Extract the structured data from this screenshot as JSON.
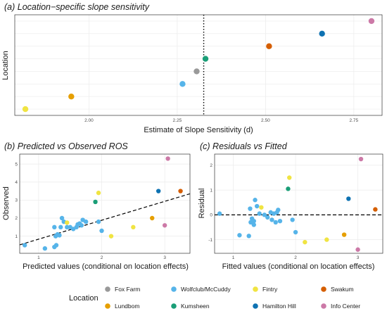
{
  "colors": {
    "Fox Farm": "#999999",
    "Lundbom": "#E69F00",
    "Wolfclub/McCuddy": "#56B4E9",
    "Kumsheen": "#1A9E77",
    "Fintry": "#F0E442",
    "Hamilton Hill": "#0E72B2",
    "Swakum": "#D55E00",
    "Info Center": "#CC79A7"
  },
  "legend": {
    "title": "Location",
    "items": [
      "Fox Farm",
      "Wolfclub/McCuddy",
      "Fintry",
      "Swakum",
      "Lundbom",
      "Kumsheen",
      "Hamilton Hill",
      "Info Center"
    ]
  },
  "chart_data": [
    {
      "type": "scatter",
      "title": "(a) Location−specific slope sensitivity",
      "xlabel": "Estimate of Slope Sensitivity (d)",
      "ylabel": "Location",
      "xlim": [
        1.79,
        2.83
      ],
      "ylim": [
        0.5,
        8.5
      ],
      "xticks": [
        2.0,
        2.25,
        2.5,
        2.75
      ],
      "xtick_labels": [
        "2.00",
        "2.25",
        "2.50",
        "2.75"
      ],
      "vline": {
        "x": 2.325,
        "style": "dotted"
      },
      "grid": true,
      "points": [
        {
          "location": "Fintry",
          "x": 1.82,
          "y": 1
        },
        {
          "location": "Lundbom",
          "x": 1.95,
          "y": 2
        },
        {
          "location": "Wolfclub/McCuddy",
          "x": 2.265,
          "y": 3
        },
        {
          "location": "Fox Farm",
          "x": 2.305,
          "y": 4
        },
        {
          "location": "Kumsheen",
          "x": 2.33,
          "y": 5
        },
        {
          "location": "Swakum",
          "x": 2.51,
          "y": 6
        },
        {
          "location": "Hamilton Hill",
          "x": 2.66,
          "y": 7
        },
        {
          "location": "Info Center",
          "x": 2.8,
          "y": 8
        }
      ]
    },
    {
      "type": "scatter",
      "title": "(b) Predicted vs Observed ROS",
      "xlabel": "Predicted values (conditional on location effects)",
      "ylabel": "Observed",
      "xlim": [
        0.7,
        3.4
      ],
      "ylim": [
        0.05,
        5.55
      ],
      "xticks": [
        1,
        2,
        3
      ],
      "yticks": [
        1,
        2,
        3,
        4,
        5
      ],
      "reference_line": {
        "from": [
          0.7,
          0.52
        ],
        "to": [
          3.4,
          3.35
        ],
        "style": "dashed"
      },
      "grid": true,
      "points": [
        {
          "location": "Wolfclub/McCuddy",
          "x": 0.78,
          "y": 0.5
        },
        {
          "location": "Wolfclub/McCuddy",
          "x": 1.1,
          "y": 0.32
        },
        {
          "location": "Wolfclub/McCuddy",
          "x": 1.25,
          "y": 0.4
        },
        {
          "location": "Wolfclub/McCuddy",
          "x": 1.28,
          "y": 0.5
        },
        {
          "location": "Wolfclub/McCuddy",
          "x": 1.27,
          "y": 1.0
        },
        {
          "location": "Wolfclub/McCuddy",
          "x": 1.3,
          "y": 1.1
        },
        {
          "location": "Wolfclub/McCuddy",
          "x": 1.33,
          "y": 1.05
        },
        {
          "location": "Wolfclub/McCuddy",
          "x": 1.25,
          "y": 1.5
        },
        {
          "location": "Wolfclub/McCuddy",
          "x": 1.35,
          "y": 1.5
        },
        {
          "location": "Wolfclub/McCuddy",
          "x": 1.37,
          "y": 2.0
        },
        {
          "location": "Wolfclub/McCuddy",
          "x": 1.4,
          "y": 1.8
        },
        {
          "location": "Wolfclub/McCuddy",
          "x": 1.45,
          "y": 1.5
        },
        {
          "location": "Wolfclub/McCuddy",
          "x": 1.5,
          "y": 1.5
        },
        {
          "location": "Wolfclub/McCuddy",
          "x": 1.55,
          "y": 1.4
        },
        {
          "location": "Wolfclub/McCuddy",
          "x": 1.6,
          "y": 1.5
        },
        {
          "location": "Wolfclub/McCuddy",
          "x": 1.62,
          "y": 1.65
        },
        {
          "location": "Wolfclub/McCuddy",
          "x": 1.65,
          "y": 1.7
        },
        {
          "location": "Wolfclub/McCuddy",
          "x": 1.68,
          "y": 1.6
        },
        {
          "location": "Wolfclub/McCuddy",
          "x": 1.7,
          "y": 1.9
        },
        {
          "location": "Wolfclub/McCuddy",
          "x": 1.75,
          "y": 1.8
        },
        {
          "location": "Wolfclub/McCuddy",
          "x": 1.95,
          "y": 1.8
        },
        {
          "location": "Wolfclub/McCuddy",
          "x": 2.0,
          "y": 1.3
        },
        {
          "location": "Fintry",
          "x": 1.45,
          "y": 1.75
        },
        {
          "location": "Fintry",
          "x": 1.95,
          "y": 3.4
        },
        {
          "location": "Fintry",
          "x": 2.15,
          "y": 1.0
        },
        {
          "location": "Fintry",
          "x": 2.5,
          "y": 1.5
        },
        {
          "location": "Kumsheen",
          "x": 1.9,
          "y": 2.9
        },
        {
          "location": "Lundbom",
          "x": 2.8,
          "y": 2.0
        },
        {
          "location": "Hamilton Hill",
          "x": 2.9,
          "y": 3.5
        },
        {
          "location": "Swakum",
          "x": 3.25,
          "y": 3.5
        },
        {
          "location": "Info Center",
          "x": 3.05,
          "y": 5.3
        },
        {
          "location": "Info Center",
          "x": 3.0,
          "y": 1.6
        }
      ]
    },
    {
      "type": "scatter",
      "title": "(c) Residuals vs Fitted",
      "xlabel": "Fitted values (conditional on location effects)",
      "ylabel": "Residual",
      "xlim": [
        0.7,
        3.4
      ],
      "ylim": [
        -1.55,
        2.45
      ],
      "xticks": [
        1,
        2,
        3
      ],
      "yticks": [
        -1,
        0,
        1,
        2
      ],
      "reference_line": {
        "y": 0,
        "style": "dashed"
      },
      "grid": true,
      "points": [
        {
          "location": "Wolfclub/McCuddy",
          "x": 0.78,
          "y": 0.05
        },
        {
          "location": "Wolfclub/McCuddy",
          "x": 1.1,
          "y": -0.82
        },
        {
          "location": "Wolfclub/McCuddy",
          "x": 1.25,
          "y": -0.85
        },
        {
          "location": "Wolfclub/McCuddy",
          "x": 1.28,
          "y": -0.3
        },
        {
          "location": "Wolfclub/McCuddy",
          "x": 1.27,
          "y": 0.25
        },
        {
          "location": "Wolfclub/McCuddy",
          "x": 1.3,
          "y": -0.15
        },
        {
          "location": "Wolfclub/McCuddy",
          "x": 1.33,
          "y": -0.25
        },
        {
          "location": "Wolfclub/McCuddy",
          "x": 1.33,
          "y": -0.4
        },
        {
          "location": "Wolfclub/McCuddy",
          "x": 1.35,
          "y": 0.6
        },
        {
          "location": "Wolfclub/McCuddy",
          "x": 1.38,
          "y": 0.35
        },
        {
          "location": "Wolfclub/McCuddy",
          "x": 1.42,
          "y": 0.05
        },
        {
          "location": "Wolfclub/McCuddy",
          "x": 1.5,
          "y": 0.0
        },
        {
          "location": "Wolfclub/McCuddy",
          "x": 1.55,
          "y": -0.1
        },
        {
          "location": "Wolfclub/McCuddy",
          "x": 1.6,
          "y": 0.1
        },
        {
          "location": "Wolfclub/McCuddy",
          "x": 1.62,
          "y": -0.2
        },
        {
          "location": "Wolfclub/McCuddy",
          "x": 1.65,
          "y": 0.05
        },
        {
          "location": "Wolfclub/McCuddy",
          "x": 1.68,
          "y": -0.3
        },
        {
          "location": "Wolfclub/McCuddy",
          "x": 1.7,
          "y": 0.1
        },
        {
          "location": "Wolfclub/McCuddy",
          "x": 1.72,
          "y": 0.2
        },
        {
          "location": "Wolfclub/McCuddy",
          "x": 1.75,
          "y": -0.25
        },
        {
          "location": "Wolfclub/McCuddy",
          "x": 1.95,
          "y": -0.2
        },
        {
          "location": "Wolfclub/McCuddy",
          "x": 2.0,
          "y": -0.7
        },
        {
          "location": "Fintry",
          "x": 1.45,
          "y": 0.3
        },
        {
          "location": "Fintry",
          "x": 1.9,
          "y": 1.5
        },
        {
          "location": "Fintry",
          "x": 2.15,
          "y": -1.1
        },
        {
          "location": "Fintry",
          "x": 2.5,
          "y": -1.0
        },
        {
          "location": "Kumsheen",
          "x": 1.88,
          "y": 1.05
        },
        {
          "location": "Lundbom",
          "x": 2.78,
          "y": -0.8
        },
        {
          "location": "Hamilton Hill",
          "x": 2.85,
          "y": 0.65
        },
        {
          "location": "Swakum",
          "x": 3.28,
          "y": 0.22
        },
        {
          "location": "Info Center",
          "x": 3.05,
          "y": 2.25
        },
        {
          "location": "Info Center",
          "x": 3.0,
          "y": -1.4
        }
      ]
    }
  ]
}
